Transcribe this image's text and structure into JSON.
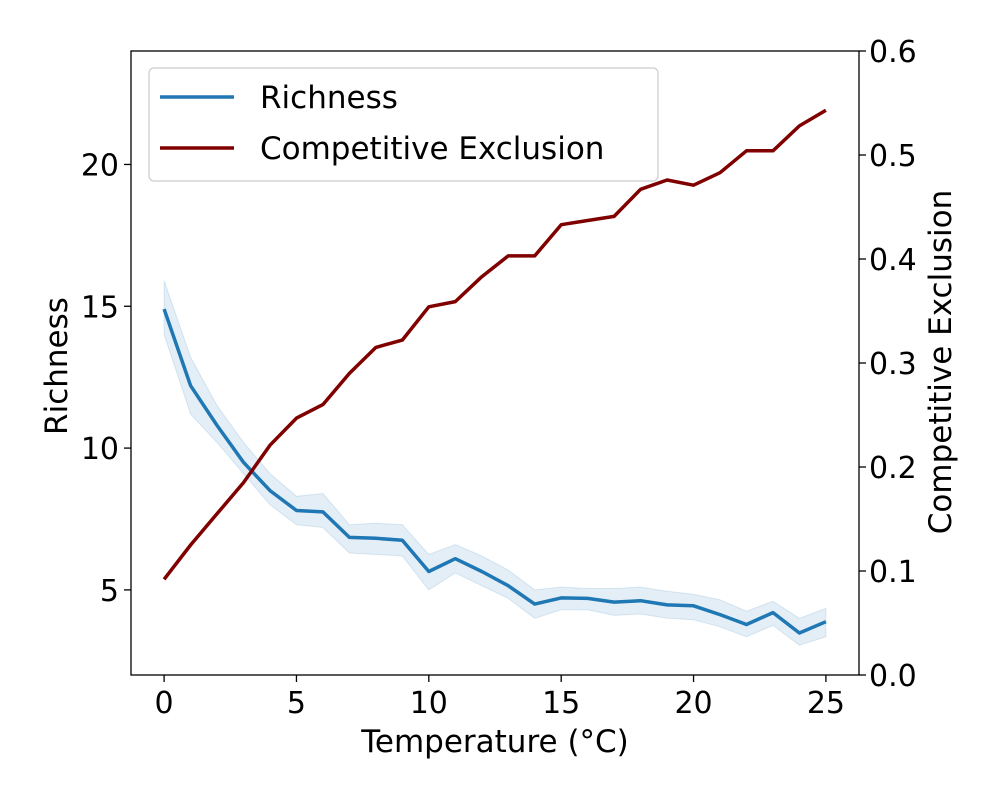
{
  "chart_data": {
    "type": "line",
    "xlabel": "Temperature ($^\\circ$C)",
    "xlabel_display": "Temperature (°C)",
    "ylabel_left": "Richness",
    "ylabel_right": "Competitive Exclusion",
    "xlim": [
      -1.25,
      26.25
    ],
    "ylim_left": [
      2.0,
      24.0
    ],
    "ylim_right": [
      0.0,
      0.6
    ],
    "x_ticks": [
      0,
      5,
      10,
      15,
      20,
      25
    ],
    "y_left_ticks": [
      5,
      10,
      15,
      20
    ],
    "y_right_ticks": [
      "0.0",
      "0.1",
      "0.2",
      "0.3",
      "0.4",
      "0.5",
      "0.6"
    ],
    "x": [
      0,
      1,
      2,
      3,
      4,
      5,
      6,
      7,
      8,
      9,
      10,
      11,
      12,
      13,
      14,
      15,
      16,
      17,
      18,
      19,
      20,
      21,
      22,
      23,
      24,
      25
    ],
    "legend_position": "upper-left",
    "grid": false,
    "series": [
      {
        "name": "Richness",
        "axis": "left",
        "color": "#1f77b4",
        "values": [
          14.9,
          12.2,
          10.8,
          9.5,
          8.5,
          7.8,
          7.75,
          6.85,
          6.82,
          6.75,
          5.65,
          6.1,
          5.65,
          5.15,
          4.5,
          4.72,
          4.7,
          4.57,
          4.62,
          4.47,
          4.44,
          4.13,
          3.78,
          4.2,
          3.48,
          3.88
        ],
        "ci_lower": [
          14.0,
          11.2,
          10.2,
          9.1,
          8.0,
          7.3,
          7.2,
          6.3,
          6.25,
          6.2,
          5.0,
          5.6,
          5.15,
          4.7,
          4.0,
          4.3,
          4.3,
          4.1,
          4.15,
          4.0,
          3.95,
          3.7,
          3.35,
          3.75,
          3.05,
          3.35
        ],
        "ci_upper": [
          15.9,
          13.2,
          11.5,
          10.2,
          9.1,
          8.3,
          8.4,
          7.3,
          7.35,
          7.3,
          6.25,
          6.6,
          6.2,
          5.7,
          5.0,
          5.1,
          5.05,
          5.05,
          5.1,
          4.95,
          4.85,
          4.65,
          4.25,
          4.6,
          4.0,
          4.35
        ]
      },
      {
        "name": "Competitive Exclusion",
        "axis": "right",
        "color": "#800000",
        "values": [
          0.092,
          0.125,
          0.155,
          0.185,
          0.221,
          0.247,
          0.26,
          0.29,
          0.315,
          0.322,
          0.354,
          0.359,
          0.383,
          0.403,
          0.403,
          0.433,
          0.437,
          0.441,
          0.467,
          0.476,
          0.471,
          0.483,
          0.504,
          0.504,
          0.528,
          0.543
        ]
      }
    ]
  }
}
